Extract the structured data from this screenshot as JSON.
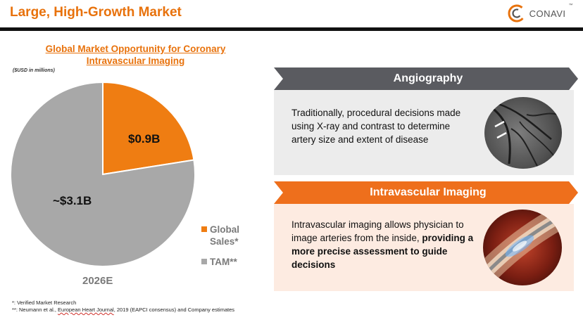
{
  "header": {
    "title": "Large, High-Growth Market",
    "logo_text": "CONAVI",
    "logo_trademark": "™"
  },
  "chart_data": {
    "type": "pie",
    "title": "Global Market Opportunity for Coronary Intravascular Imaging",
    "subtitle": "($USD in millions)",
    "category": "2026E",
    "slices": [
      {
        "name": "Global Sales*",
        "value": 0.9,
        "label": "$0.9B",
        "color": "#ef7d12"
      },
      {
        "name": "TAM**",
        "value": 3.1,
        "label": "~$3.1B",
        "color": "#a8a8a8"
      }
    ],
    "legend_position": "right"
  },
  "panels": {
    "angiography": {
      "title": "Angiography",
      "text": "Traditionally, procedural decisions made using X-ray and contrast to determine artery size and extent of disease"
    },
    "intravascular": {
      "title": "Intravascular Imaging",
      "text_plain": "Intravascular imaging allows physician to image arteries from the inside,",
      "text_bold": "providing a more precise assessment to guide decisions"
    }
  },
  "footnotes": {
    "note1": "*: Verified Market Research",
    "note2_prefix": "**: Neumann et al., ",
    "note2_link": "European Heart Journal",
    "note2_suffix": ", 2019 (EAPCI consensus) and Company estimates"
  },
  "colors": {
    "accent": "#e8720c",
    "banner_dark": "#5a5b60",
    "banner_orange": "#ee6f1c",
    "panel_gray": "#ececec",
    "panel_peach": "#fdebe1"
  }
}
